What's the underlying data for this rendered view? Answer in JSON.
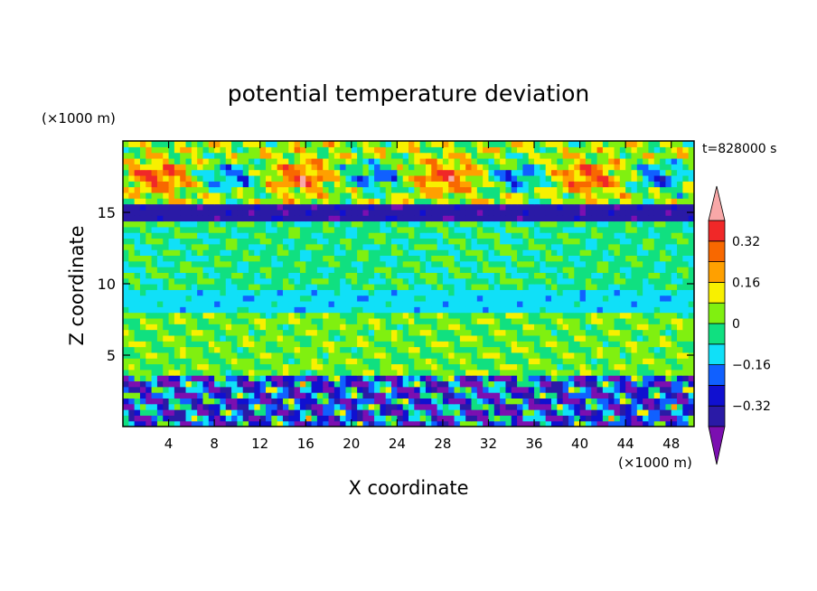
{
  "chart_data": {
    "type": "heatmap",
    "title": "potential temperature deviation",
    "xlabel": "X coordinate",
    "ylabel": "Z coordinate",
    "x_unit": "(×1000 m)",
    "y_unit": "(×1000 m)",
    "time_label": "t=828000 s",
    "xlim": [
      0,
      50
    ],
    "ylim": [
      0,
      20
    ],
    "x_ticks": [
      4,
      8,
      12,
      16,
      20,
      24,
      28,
      32,
      36,
      40,
      44,
      48
    ],
    "y_ticks": [
      5,
      10,
      15
    ],
    "grid": false,
    "colorbar": {
      "position": "right",
      "levels": [
        -0.4,
        -0.32,
        -0.24,
        -0.16,
        -0.08,
        0,
        0.08,
        0.16,
        0.24,
        0.32,
        0.4
      ],
      "tick_labels": [
        "0.32",
        "0.16",
        "0",
        "−0.16",
        "−0.32"
      ],
      "tick_values": [
        0.32,
        0.16,
        0,
        -0.16,
        -0.32
      ],
      "colors": [
        "#7b0fb0",
        "#2a1aa6",
        "#1010d0",
        "#1060ff",
        "#10e0f8",
        "#10e080",
        "#80f010",
        "#f8f000",
        "#ffa000",
        "#f86800",
        "#f02828",
        "#f8a8a8"
      ],
      "over_color": "#f8a8a8",
      "under_color": "#7b0fb0"
    },
    "field_layers": [
      {
        "z_range": [
          0,
          3.5
        ],
        "value": -0.24,
        "pattern": "turbulent"
      },
      {
        "z_range": [
          3.5,
          8
        ],
        "value": 0.02,
        "pattern": "mottled"
      },
      {
        "z_range": [
          8,
          9.5
        ],
        "value": -0.12,
        "pattern": "band"
      },
      {
        "z_range": [
          9.5,
          14.5
        ],
        "value": -0.04,
        "pattern": "mottled"
      },
      {
        "z_range": [
          14.5,
          15.5
        ],
        "value": -0.36,
        "pattern": "band"
      },
      {
        "z_range": [
          15.5,
          20
        ],
        "value": 0.06,
        "pattern": "waves"
      }
    ]
  }
}
